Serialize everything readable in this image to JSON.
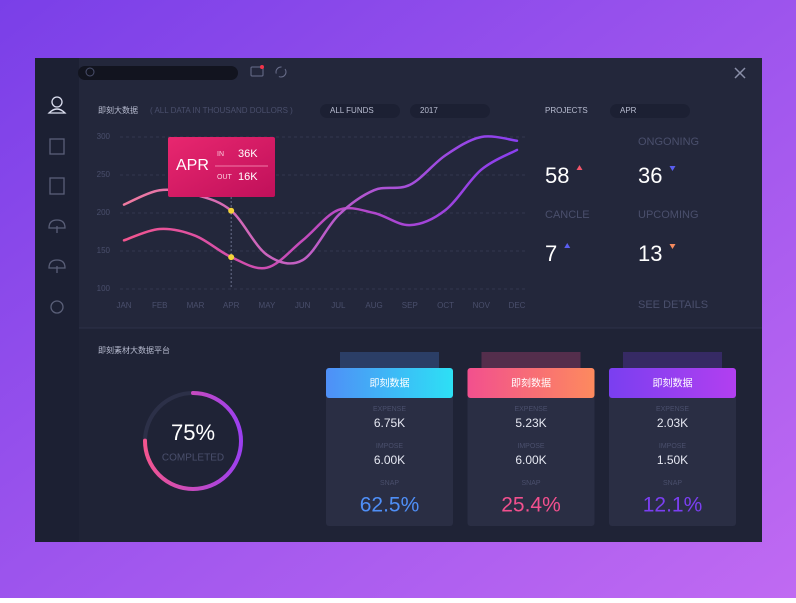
{
  "panel": {
    "title": "即刻大数据",
    "note": "( ALL DATA IN THOUSAND DOLLORS )",
    "filters": [
      "ALL FUNDS",
      "2017"
    ]
  },
  "chart_data": {
    "type": "line",
    "categories": [
      "JAN",
      "FEB",
      "MAR",
      "APR",
      "MAY",
      "JUN",
      "JUL",
      "AUG",
      "SEP",
      "OCT",
      "NOV",
      "DEC"
    ],
    "series": [
      {
        "color": "#f2558f",
        "values": [
          164,
          179,
          170,
          142,
          128,
          164,
          204,
          200,
          184,
          204,
          257,
          283
        ]
      },
      {
        "color": "#f07aa0",
        "values": [
          211,
          230,
          224,
          203,
          145,
          138,
          197,
          230,
          237,
          276,
          300,
          295
        ]
      }
    ],
    "ylim": [
      100,
      300
    ],
    "yticks": [
      100,
      150,
      200,
      250,
      300
    ],
    "grid": true
  },
  "tooltip": {
    "month": "APR",
    "rows": [
      {
        "label": "IN",
        "value": "36K"
      },
      {
        "label": "OUT",
        "value": "16K"
      }
    ]
  },
  "projects": {
    "title": "PROJECTS",
    "month": "APR",
    "stats": [
      {
        "value": "58",
        "trend": "up",
        "color": "#f2556a"
      },
      {
        "label": "ONGONING",
        "value": "36",
        "trend": "down",
        "color": "#5a5ef0"
      },
      {
        "label": "CANCLE",
        "value": "7",
        "trend": "up",
        "color": "#5a5ef0"
      },
      {
        "label": "UPCOMING",
        "value": "13",
        "trend": "down",
        "color": "#f58a5e"
      }
    ],
    "link": "SEE DETAILS"
  },
  "bottom": {
    "title": "即刻素材大数据平台",
    "progress": {
      "value": 75,
      "label": "75%",
      "caption": "COMPLETED"
    },
    "cards": [
      {
        "title": "即刻数据",
        "colors": [
          "#4f8ff7",
          "#2de0f5"
        ],
        "rows": [
          {
            "label": "EXPENSE",
            "value": "6.75K"
          },
          {
            "label": "IMPOSE",
            "value": "6.00K"
          },
          {
            "label": "SNAP",
            "value": "62.5%"
          }
        ]
      },
      {
        "title": "即刻数据",
        "colors": [
          "#f2508e",
          "#fd8a5e"
        ],
        "rows": [
          {
            "label": "EXPENSE",
            "value": "5.23K"
          },
          {
            "label": "IMPOSE",
            "value": "6.00K"
          },
          {
            "label": "SNAP",
            "value": "25.4%"
          }
        ]
      },
      {
        "title": "即刻数据",
        "colors": [
          "#7a3ff0",
          "#b23ff0"
        ],
        "rows": [
          {
            "label": "EXPENSE",
            "value": "2.03K"
          },
          {
            "label": "IMPOSE",
            "value": "1.50K"
          },
          {
            "label": "SNAP",
            "value": "12.1%"
          }
        ]
      }
    ]
  }
}
